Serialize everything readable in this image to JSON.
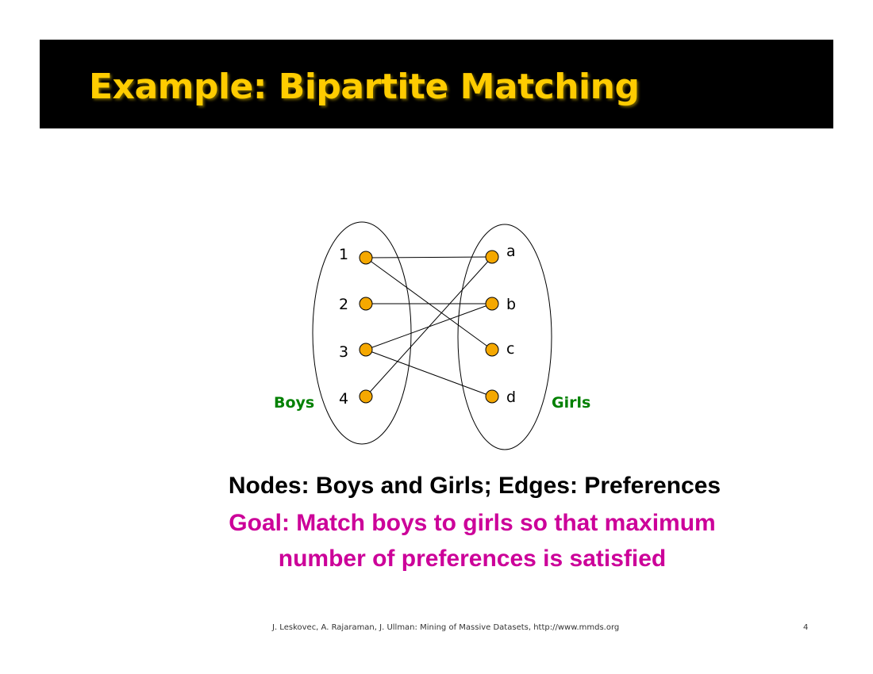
{
  "title": "Example: Bipartite Matching",
  "diagram": {
    "left_group": {
      "label": "Boys",
      "nodes": [
        "1",
        "2",
        "3",
        "4"
      ]
    },
    "right_group": {
      "label": "Girls",
      "nodes": [
        "a",
        "b",
        "c",
        "d"
      ]
    },
    "edges": [
      [
        "1",
        "a"
      ],
      [
        "1",
        "c"
      ],
      [
        "2",
        "b"
      ],
      [
        "3",
        "b"
      ],
      [
        "3",
        "d"
      ],
      [
        "4",
        "a"
      ]
    ],
    "colors": {
      "node_fill": "#f5a800",
      "group_label": "#008000",
      "title_text": "#ffcc00",
      "goal_text": "#cc0099"
    }
  },
  "caption": {
    "line1": "Nodes: Boys and Girls; Edges: Preferences",
    "line2": "Goal: Match boys to girls so that maximum",
    "line3": "number of preferences is satisfied"
  },
  "footer": {
    "citation": "J. Leskovec, A. Rajaraman, J. Ullman: Mining of Massive Datasets, http://www.mmds.org",
    "page_number": "4"
  }
}
